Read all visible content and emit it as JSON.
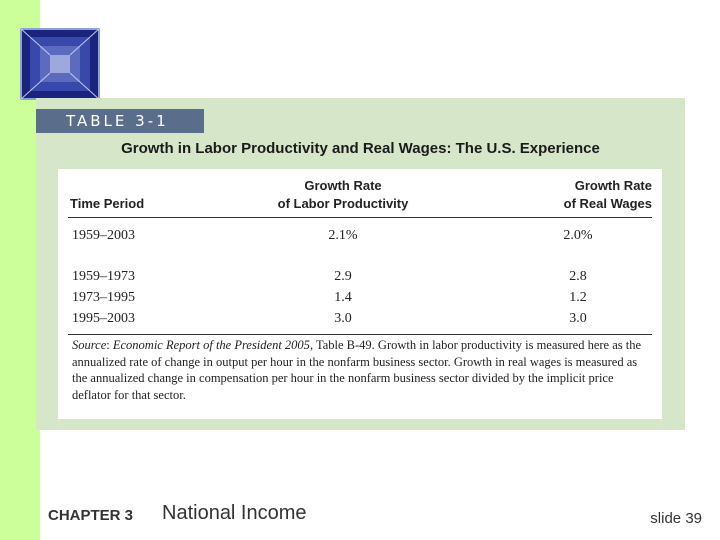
{
  "badge": "TABLE 3-1",
  "title": "Growth in Labor Productivity and Real Wages: The U.S. Experience",
  "headers": {
    "period": "Time Period",
    "productivity_line1": "Growth Rate",
    "productivity_line2": "of Labor Productivity",
    "wages_line1": "Growth Rate",
    "wages_line2": "of Real Wages"
  },
  "rows": [
    {
      "period": "1959–2003",
      "productivity": "2.1%",
      "wages": "2.0%"
    },
    {
      "period": "1959–1973",
      "productivity": "2.9",
      "wages": "2.8"
    },
    {
      "period": "1973–1995",
      "productivity": "1.4",
      "wages": "1.2"
    },
    {
      "period": "1995–2003",
      "productivity": "3.0",
      "wages": "3.0"
    }
  ],
  "source": {
    "label": "Source",
    "publication": "Economic Report of the President 2005",
    "text": ", Table B-49. Growth in labor productivity is measured here as the annualized rate of change in output per hour in the nonfarm business sector. Growth in real wages is measured as the annualized change in compensation per hour in the nonfarm business sector divided by the implicit price deflator for that sector."
  },
  "footer": {
    "chapter": "CHAPTER 3",
    "topic": "National Income",
    "slide": "slide 39"
  },
  "colors": {
    "accent_green": "#ccff99",
    "panel_green": "#d6e7c9",
    "badge_blue": "#5a6e8c"
  }
}
